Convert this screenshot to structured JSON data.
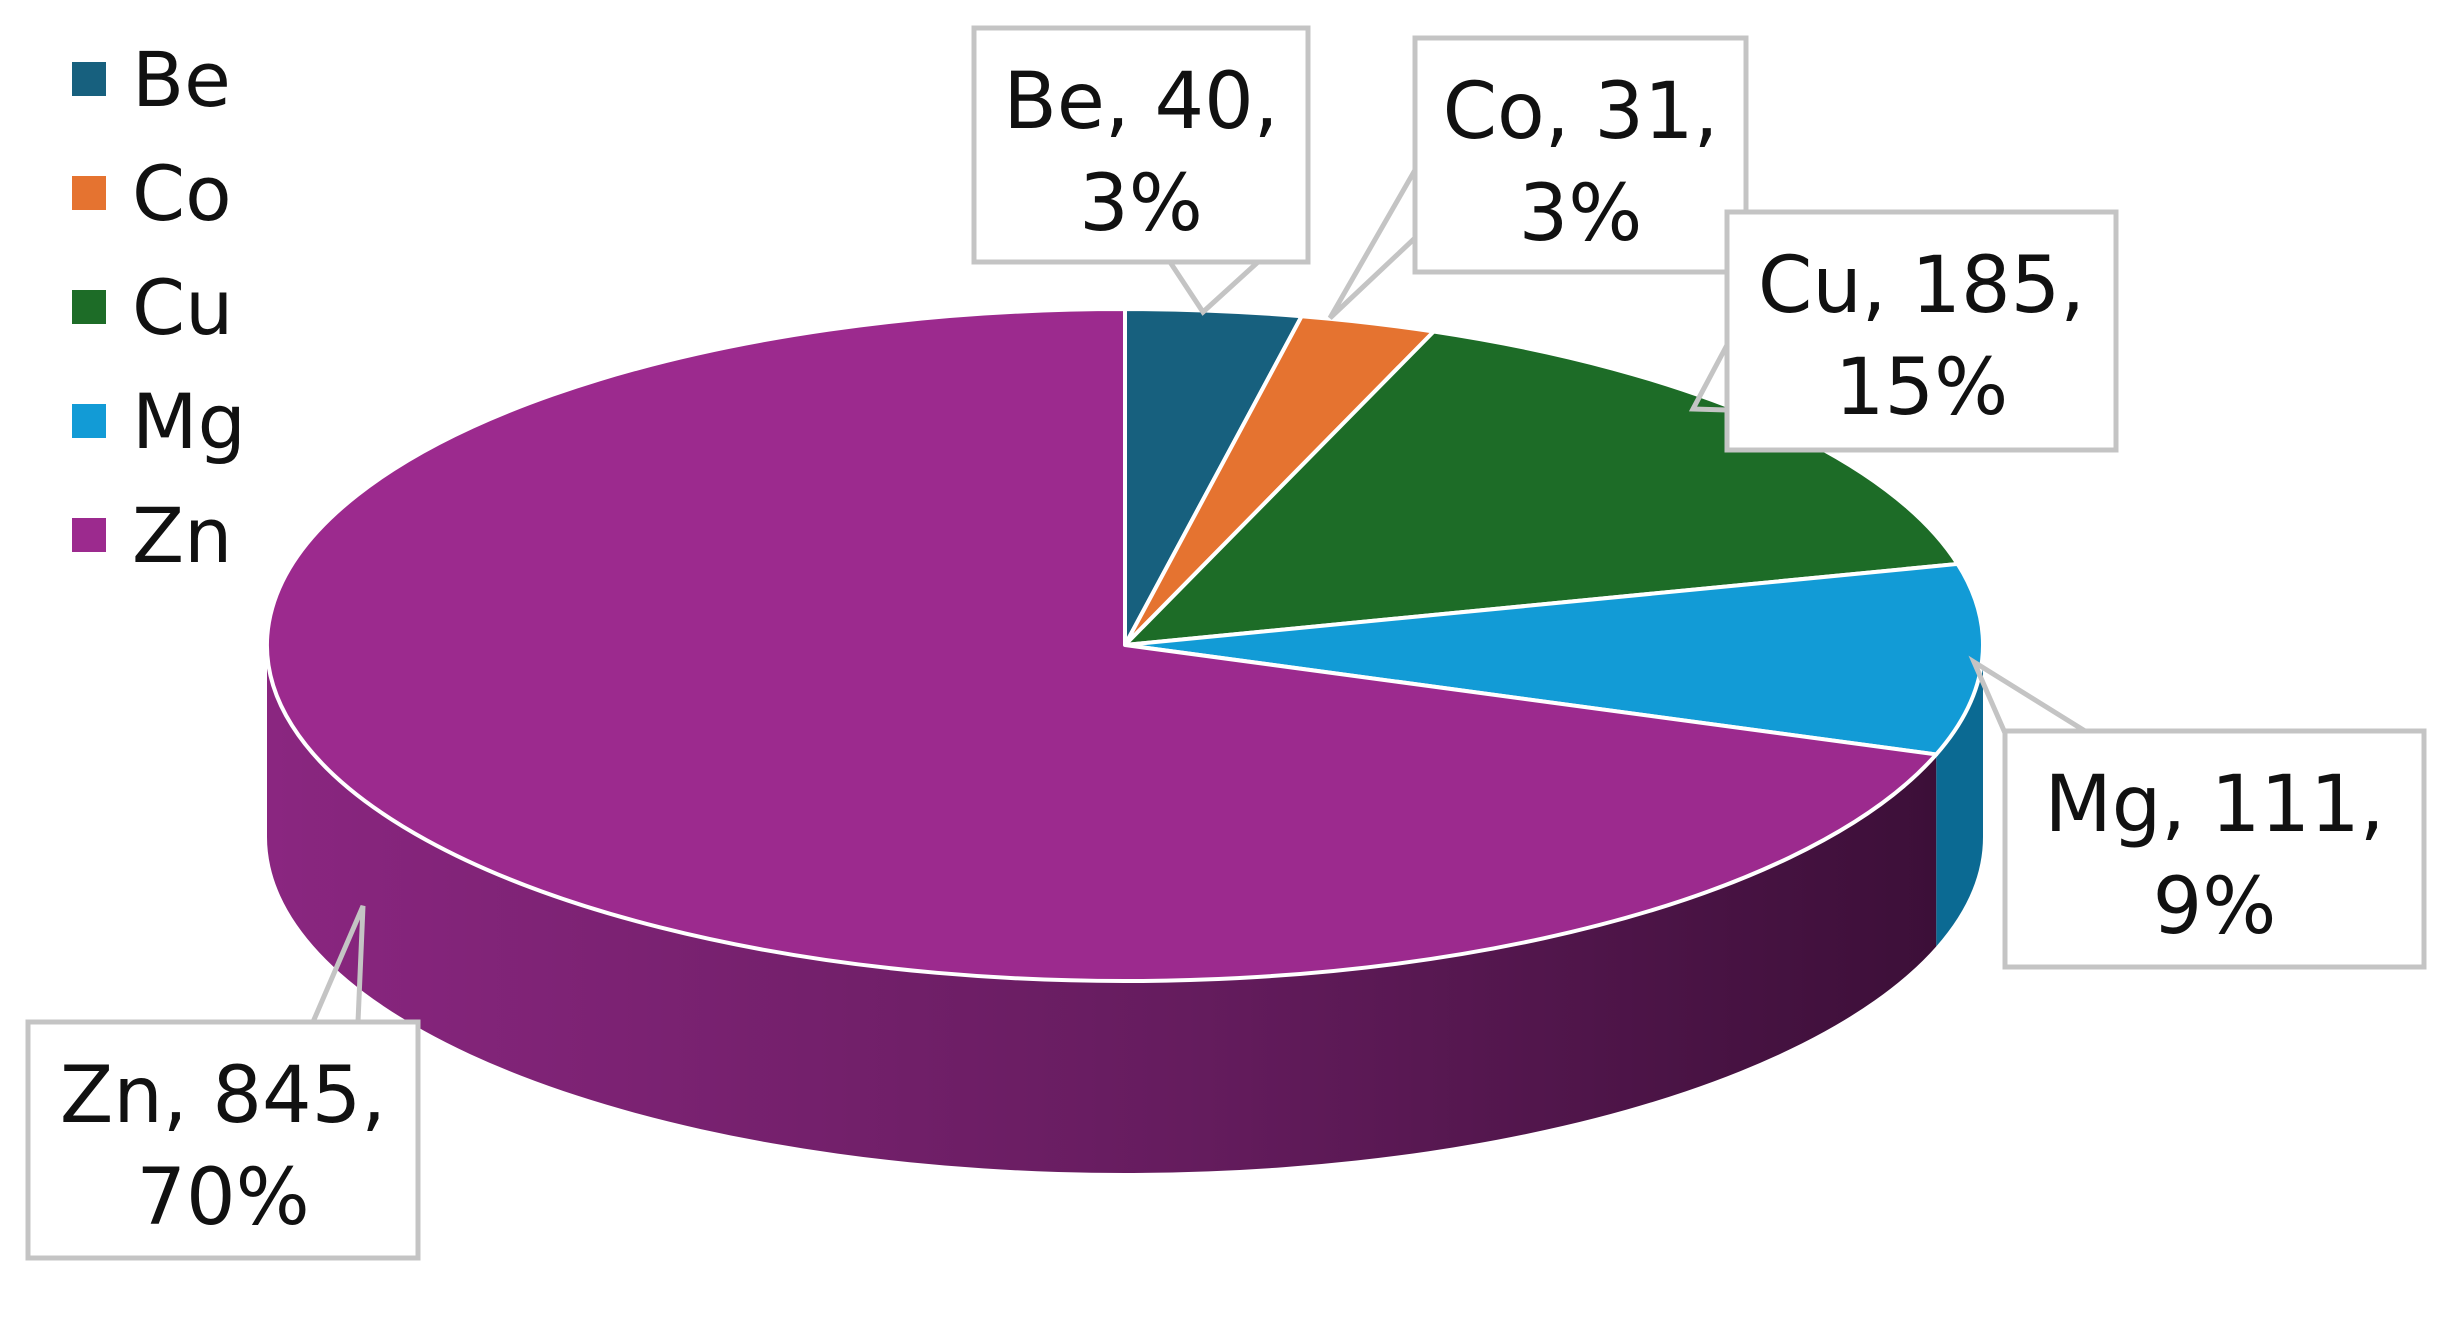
{
  "chart_data": {
    "type": "pie",
    "title": "",
    "categories": [
      "Be",
      "Co",
      "Cu",
      "Mg",
      "Zn"
    ],
    "values": [
      40,
      31,
      185,
      111,
      845
    ],
    "percent_labels": [
      "3%",
      "3%",
      "15%",
      "9%",
      "70%"
    ],
    "data_labels": [
      {
        "line1": "Be, 40,",
        "line2": "3%"
      },
      {
        "line1": "Co, 31,",
        "line2": "3%"
      },
      {
        "line1": "Cu, 185,",
        "line2": "15%"
      },
      {
        "line1": "Mg, 111,",
        "line2": "9%"
      },
      {
        "line1": "Zn, 845,",
        "line2": "70%"
      }
    ],
    "colors": [
      "#17607e",
      "#e57330",
      "#1d6c27",
      "#129bd6",
      "#9c2a8e"
    ],
    "side_colors": [
      "#0e3d51",
      "#93461c",
      "#124418",
      "#0b6a93",
      "#5f1957"
    ],
    "legend_position": "top-left",
    "style": "3d-pie"
  }
}
